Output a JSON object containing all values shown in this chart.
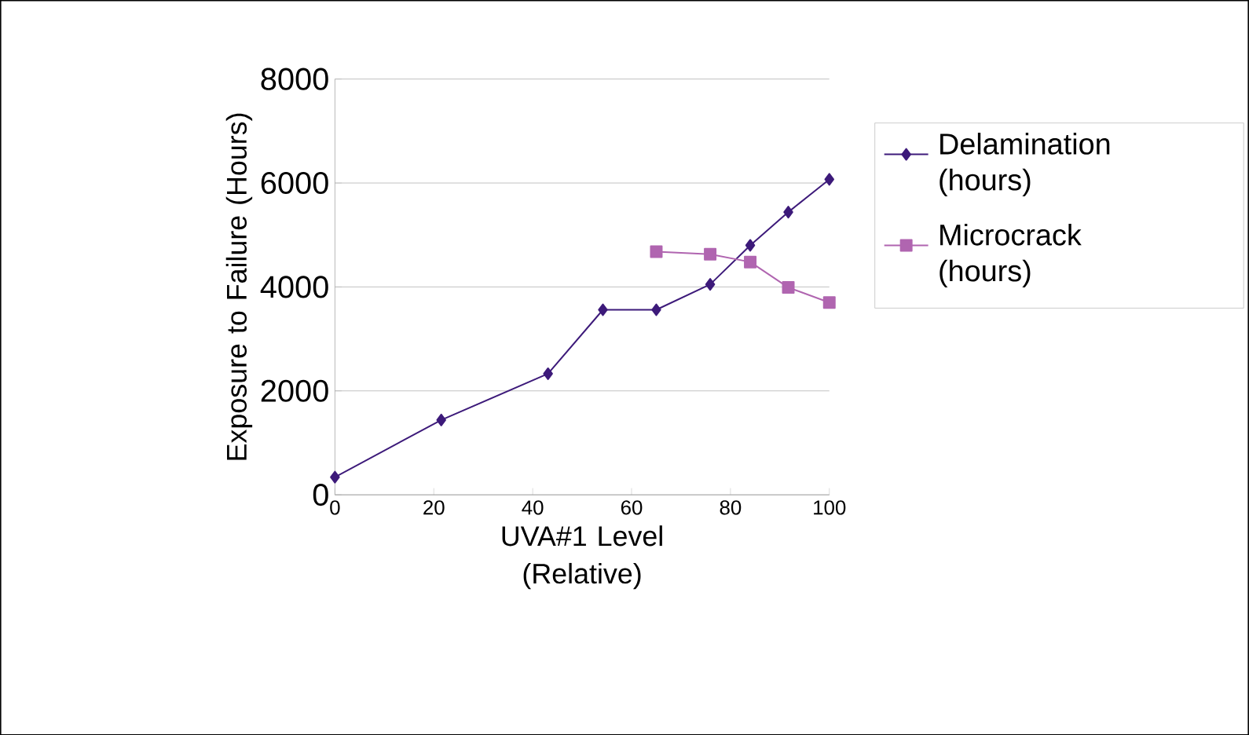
{
  "chart_data": {
    "type": "line",
    "xlabel": "UVA#1 Level (Relative)",
    "ylabel": "Exposure to Failure (Hours)",
    "xlim": [
      0,
      100
    ],
    "xticks": [
      0,
      20,
      40,
      60,
      80,
      100
    ],
    "ylim": [
      0,
      8000
    ],
    "yticks": [
      0,
      2000,
      4000,
      6000,
      8000
    ],
    "grid": "y",
    "legend": "right",
    "series": [
      {
        "name": "Delamination (hours)",
        "color": "#3d1a7a",
        "marker": "diamond",
        "x": [
          0,
          21.5,
          43.1,
          54.2,
          65,
          75.9,
          84,
          91.7,
          100
        ],
        "values": [
          340,
          1440,
          2330,
          3560,
          3560,
          4050,
          4800,
          5440,
          6070
        ]
      },
      {
        "name": "Microcrack (hours)",
        "color": "#b065b0",
        "marker": "square",
        "x": [
          65,
          75.9,
          84,
          91.7,
          100
        ],
        "values": [
          4680,
          4630,
          4480,
          3990,
          3700
        ]
      }
    ]
  }
}
